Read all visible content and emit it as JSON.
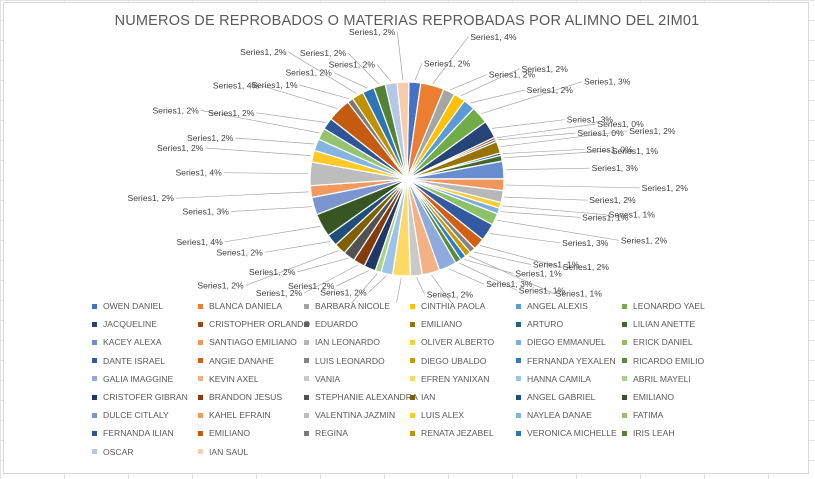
{
  "chart_data": {
    "type": "pie",
    "title": "NUMEROS DE REPROBADOS O MATERIAS REPROBADAS POR ALIMNO DEL 2IM01",
    "legend_position": "bottom",
    "series": [
      {
        "name": "Series1",
        "points": [
          {
            "label": "OWEN DANIEL",
            "value": 2,
            "color": "#4472C4"
          },
          {
            "label": "BLANCA DANIELA",
            "value": 4,
            "color": "#ED7D31"
          },
          {
            "label": "BARBARA NICOLE",
            "value": 2,
            "color": "#A5A5A5"
          },
          {
            "label": "CINTHIA PAOLA",
            "value": 2,
            "color": "#FFC000"
          },
          {
            "label": "ANGEL ALEXIS",
            "value": 2,
            "color": "#5B9BD5"
          },
          {
            "label": "LEONARDO YAEL",
            "value": 3,
            "color": "#70AD47"
          },
          {
            "label": "JACQUELINE",
            "value": 3,
            "color": "#264478"
          },
          {
            "label": "CRISTOPHER ORLANDO",
            "value": 0,
            "color": "#9E480E"
          },
          {
            "label": "EDUARDO",
            "value": 0,
            "color": "#636363"
          },
          {
            "label": "EMILIANO",
            "value": 2,
            "color": "#997300"
          },
          {
            "label": "ARTURO",
            "value": 0,
            "color": "#255E91"
          },
          {
            "label": "LILIAN ANETTE",
            "value": 1,
            "color": "#43682B"
          },
          {
            "label": "KACEY ALEXA",
            "value": 3,
            "color": "#698ED0"
          },
          {
            "label": "SANTIAGO EMILIANO",
            "value": 2,
            "color": "#F1975A"
          },
          {
            "label": "IAN LEONARDO",
            "value": 2,
            "color": "#B7B7B7"
          },
          {
            "label": "OLIVER ALBERTO",
            "value": 1,
            "color": "#FFCD33"
          },
          {
            "label": "DIEGO EMMANUEL",
            "value": 1,
            "color": "#7CAFDD"
          },
          {
            "label": "ERICK DANIEL",
            "value": 2,
            "color": "#8CC168"
          },
          {
            "label": "DANTE ISRAEL",
            "value": 3,
            "color": "#335AA1"
          },
          {
            "label": "ANGIE DANAHE",
            "value": 2,
            "color": "#D26012"
          },
          {
            "label": "LUIS LEONARDO",
            "value": 1,
            "color": "#848484"
          },
          {
            "label": "DIEGO UBALDO",
            "value": 1,
            "color": "#CC9A00"
          },
          {
            "label": "FERNANDA YEXALEN",
            "value": 1,
            "color": "#327DC2"
          },
          {
            "label": "RICARDO EMILIO",
            "value": 1,
            "color": "#5A8A39"
          },
          {
            "label": "GALIA IMAGGINE",
            "value": 3,
            "color": "#8FAADC"
          },
          {
            "label": "KEVIN AXEL",
            "value": 3,
            "color": "#F4B183"
          },
          {
            "label": "VANIA",
            "value": 2,
            "color": "#C9C9C9"
          },
          {
            "label": "EFREN YANIXAN",
            "value": 3,
            "color": "#FFD966"
          },
          {
            "label": "HANNA CAMILA",
            "value": 2,
            "color": "#9DC3E6"
          },
          {
            "label": "ABRIL MAYELI",
            "value": 1,
            "color": "#A9D18E"
          },
          {
            "label": "CRISTOFER GIBRAN",
            "value": 2,
            "color": "#203864"
          },
          {
            "label": "BRANDON JESUS",
            "value": 2,
            "color": "#843C0C"
          },
          {
            "label": "STEPHANIE ALEXANDRA",
            "value": 2,
            "color": "#525252"
          },
          {
            "label": "IAN",
            "value": 2,
            "color": "#7F6000"
          },
          {
            "label": "ANGEL GABRIEL",
            "value": 2,
            "color": "#1F4E79"
          },
          {
            "label": "EMILIANO",
            "value": 4,
            "color": "#375623"
          },
          {
            "label": "DULCE CITLALY",
            "value": 3,
            "color": "#7B96CF"
          },
          {
            "label": "KAHEL EFRAIN",
            "value": 2,
            "color": "#F19A5E"
          },
          {
            "label": "VALENTINA JAZMIN",
            "value": 4,
            "color": "#BDBDBD"
          },
          {
            "label": "LUIS ALEX",
            "value": 2,
            "color": "#FFCA28"
          },
          {
            "label": "NAYLEA DANAE",
            "value": 2,
            "color": "#84B5E0"
          },
          {
            "label": "FATIMA",
            "value": 2,
            "color": "#95C471"
          },
          {
            "label": "FERNANDA ILIAN",
            "value": 2,
            "color": "#2E5598"
          },
          {
            "label": "EMILIANO",
            "value": 4,
            "color": "#C55A11"
          },
          {
            "label": "REGINA",
            "value": 1,
            "color": "#7A7A7A"
          },
          {
            "label": "RENATA JEZABEL",
            "value": 2,
            "color": "#BF9000"
          },
          {
            "label": "VERONICA MICHELLE",
            "value": 2,
            "color": "#2E75B6"
          },
          {
            "label": "IRIS LEAH",
            "value": 2,
            "color": "#548235"
          },
          {
            "label": "OSCAR",
            "value": 2,
            "color": "#B4C7E7"
          },
          {
            "label": "IAN SAUL",
            "value": 2,
            "color": "#F8CBAD"
          }
        ]
      }
    ],
    "data_label_prefix": "Series1, ",
    "data_label_suffix": "%"
  }
}
